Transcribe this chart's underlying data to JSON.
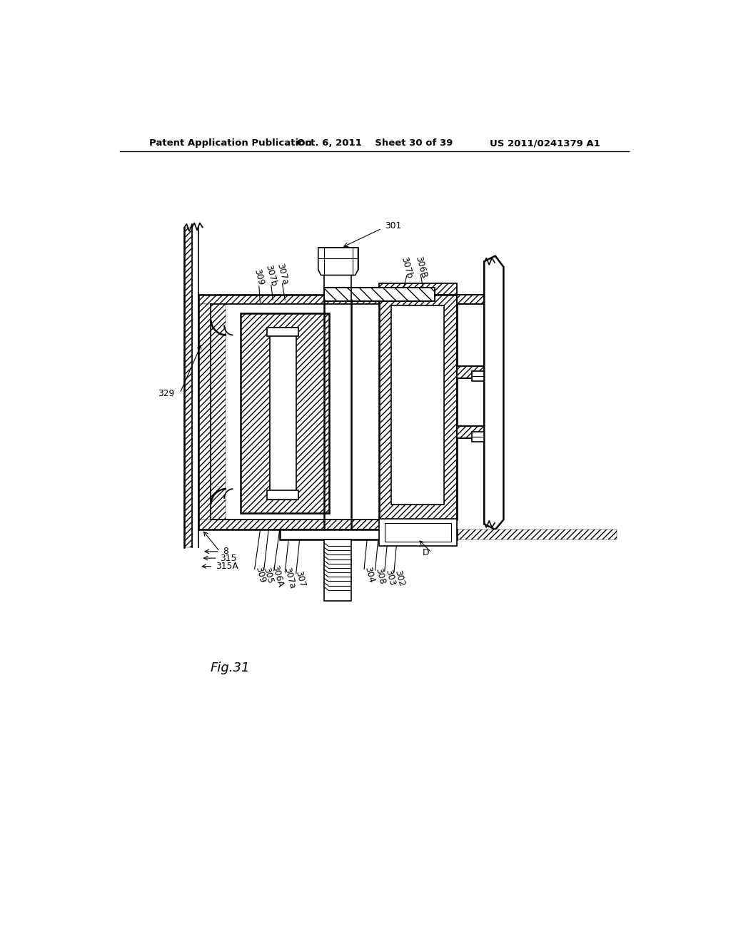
{
  "bg_color": "#ffffff",
  "header_left": "Patent Application Publication",
  "header_mid": "Oct. 6, 2011  Sheet 30 of 39",
  "header_right": "US 2011/0241379 A1",
  "fig_label": "Fig.31"
}
